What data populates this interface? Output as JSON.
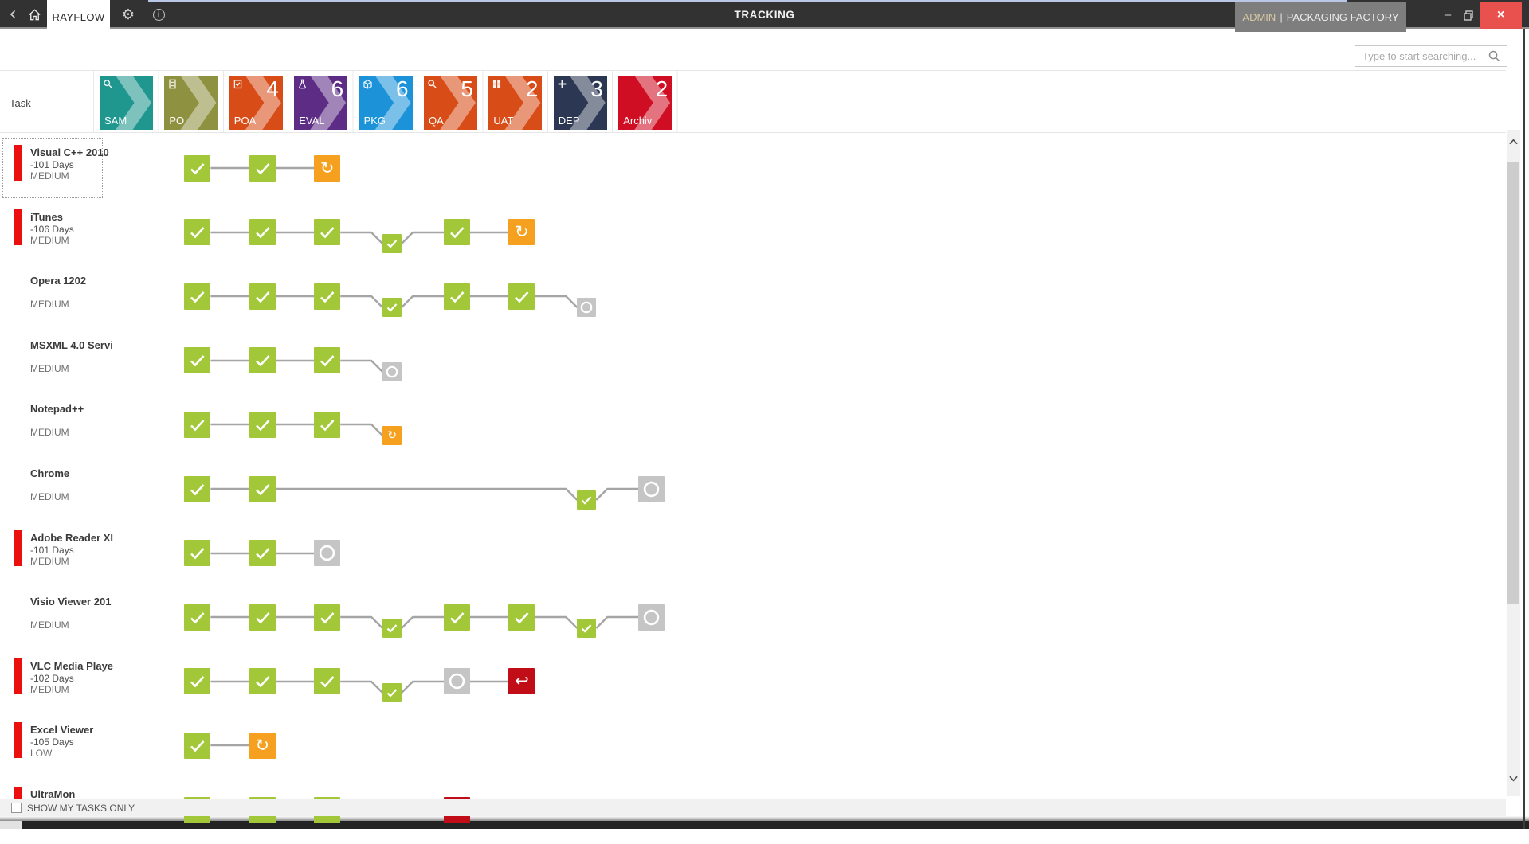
{
  "titlebar": {
    "tab": "RAYFLOW",
    "title": "TRACKING",
    "user": "ADMIN",
    "separator": "|",
    "company": "PACKAGING FACTORY",
    "back_glyph": "‹",
    "minimize_glyph": "–",
    "close_glyph": "×"
  },
  "search": {
    "placeholder": "Type to start searching...",
    "value": ""
  },
  "grid": {
    "task_column_header": "Task"
  },
  "stages": [
    {
      "label": "SAM",
      "count": "",
      "color": "#1f968e",
      "icon": "magnifier"
    },
    {
      "label": "PO",
      "count": "",
      "color": "#8e9140",
      "icon": "document"
    },
    {
      "label": "POA",
      "count": "4",
      "color": "#d74c17",
      "icon": "clipboard-check"
    },
    {
      "label": "EVAL",
      "count": "6",
      "color": "#5d2c85",
      "icon": "flask"
    },
    {
      "label": "PKG",
      "count": "6",
      "color": "#1c93d9",
      "icon": "package"
    },
    {
      "label": "QA",
      "count": "5",
      "color": "#d74c17",
      "icon": "magnifier"
    },
    {
      "label": "UAT",
      "count": "2",
      "color": "#d74c17",
      "icon": "grid"
    },
    {
      "label": "DEP",
      "count": "3",
      "color": "#2c3753",
      "icon": "plus"
    },
    {
      "label": "Archiv",
      "count": "2",
      "color": "#cf0e23",
      "icon": "none"
    }
  ],
  "tasks": [
    {
      "name": "Visual C++ 2010",
      "days": "-101 Days",
      "priority": "MEDIUM",
      "urgent": true,
      "selected": true,
      "steps": [
        {
          "col": 1,
          "size": "large",
          "status": "done"
        },
        {
          "col": 2,
          "size": "large",
          "status": "done"
        },
        {
          "col": 3,
          "size": "large",
          "status": "rework"
        }
      ]
    },
    {
      "name": "iTunes",
      "days": "-106 Days",
      "priority": "MEDIUM",
      "urgent": true,
      "selected": false,
      "steps": [
        {
          "col": 1,
          "size": "large",
          "status": "done"
        },
        {
          "col": 2,
          "size": "large",
          "status": "done"
        },
        {
          "col": 3,
          "size": "large",
          "status": "done"
        },
        {
          "col": 4,
          "size": "small",
          "status": "done"
        },
        {
          "col": 5,
          "size": "large",
          "status": "done"
        },
        {
          "col": 6,
          "size": "large",
          "status": "rework"
        }
      ]
    },
    {
      "name": "Opera 1202",
      "days": "",
      "priority": "MEDIUM",
      "urgent": false,
      "selected": false,
      "steps": [
        {
          "col": 1,
          "size": "large",
          "status": "done"
        },
        {
          "col": 2,
          "size": "large",
          "status": "done"
        },
        {
          "col": 3,
          "size": "large",
          "status": "done"
        },
        {
          "col": 4,
          "size": "small",
          "status": "done"
        },
        {
          "col": 5,
          "size": "large",
          "status": "done"
        },
        {
          "col": 6,
          "size": "large",
          "status": "done"
        },
        {
          "col": 7,
          "size": "small",
          "status": "open"
        }
      ]
    },
    {
      "name": "MSXML 4.0 Servi",
      "days": "",
      "priority": "MEDIUM",
      "urgent": false,
      "selected": false,
      "steps": [
        {
          "col": 1,
          "size": "large",
          "status": "done"
        },
        {
          "col": 2,
          "size": "large",
          "status": "done"
        },
        {
          "col": 3,
          "size": "large",
          "status": "done"
        },
        {
          "col": 4,
          "size": "small",
          "status": "open"
        }
      ]
    },
    {
      "name": "Notepad++",
      "days": "",
      "priority": "MEDIUM",
      "urgent": false,
      "selected": false,
      "steps": [
        {
          "col": 1,
          "size": "large",
          "status": "done"
        },
        {
          "col": 2,
          "size": "large",
          "status": "done"
        },
        {
          "col": 3,
          "size": "large",
          "status": "done"
        },
        {
          "col": 4,
          "size": "small",
          "status": "rework"
        }
      ]
    },
    {
      "name": "Chrome",
      "days": "",
      "priority": "MEDIUM",
      "urgent": false,
      "selected": false,
      "steps": [
        {
          "col": 1,
          "size": "large",
          "status": "done"
        },
        {
          "col": 2,
          "size": "large",
          "status": "done"
        },
        {
          "col": 7,
          "size": "small",
          "status": "done"
        },
        {
          "col": 8,
          "size": "large",
          "status": "open"
        }
      ]
    },
    {
      "name": "Adobe Reader XI",
      "days": "-101 Days",
      "priority": "MEDIUM",
      "urgent": true,
      "selected": false,
      "steps": [
        {
          "col": 1,
          "size": "large",
          "status": "done"
        },
        {
          "col": 2,
          "size": "large",
          "status": "done"
        },
        {
          "col": 3,
          "size": "large",
          "status": "open"
        }
      ]
    },
    {
      "name": "Visio Viewer 201",
      "days": "",
      "priority": "MEDIUM",
      "urgent": false,
      "selected": false,
      "steps": [
        {
          "col": 1,
          "size": "large",
          "status": "done"
        },
        {
          "col": 2,
          "size": "large",
          "status": "done"
        },
        {
          "col": 3,
          "size": "large",
          "status": "done"
        },
        {
          "col": 4,
          "size": "small",
          "status": "done"
        },
        {
          "col": 5,
          "size": "large",
          "status": "done"
        },
        {
          "col": 6,
          "size": "large",
          "status": "done"
        },
        {
          "col": 7,
          "size": "small",
          "status": "done"
        },
        {
          "col": 8,
          "size": "large",
          "status": "open"
        }
      ]
    },
    {
      "name": "VLC Media Playe",
      "days": "-102 Days",
      "priority": "MEDIUM",
      "urgent": true,
      "selected": false,
      "steps": [
        {
          "col": 1,
          "size": "large",
          "status": "done"
        },
        {
          "col": 2,
          "size": "large",
          "status": "done"
        },
        {
          "col": 3,
          "size": "large",
          "status": "done"
        },
        {
          "col": 4,
          "size": "small",
          "status": "done"
        },
        {
          "col": 5,
          "size": "large",
          "status": "open"
        },
        {
          "col": 6,
          "size": "large",
          "status": "rejected"
        }
      ]
    },
    {
      "name": "Excel Viewer",
      "days": "-105 Days",
      "priority": "LOW",
      "urgent": true,
      "selected": false,
      "steps": [
        {
          "col": 1,
          "size": "large",
          "status": "done"
        },
        {
          "col": 2,
          "size": "large",
          "status": "rework"
        }
      ]
    },
    {
      "name": "UltraMon",
      "days": "",
      "priority": "",
      "urgent": true,
      "selected": false,
      "steps": [
        {
          "col": 1,
          "size": "large",
          "status": "done"
        },
        {
          "col": 2,
          "size": "large",
          "status": "done"
        },
        {
          "col": 3,
          "size": "large",
          "status": "done"
        },
        {
          "col": 5,
          "size": "large",
          "status": "rejected"
        }
      ]
    }
  ],
  "footer": {
    "show_my_tasks_label": "SHOW MY TASKS ONLY",
    "checked": false
  },
  "status_colors": {
    "done": "#a2c83a",
    "rework": "#f6a01f",
    "open": "#c5c5c5",
    "rejected": "#c00d17",
    "connector": "#a5a5a5",
    "urgent_bar": "#ec0f0f"
  }
}
